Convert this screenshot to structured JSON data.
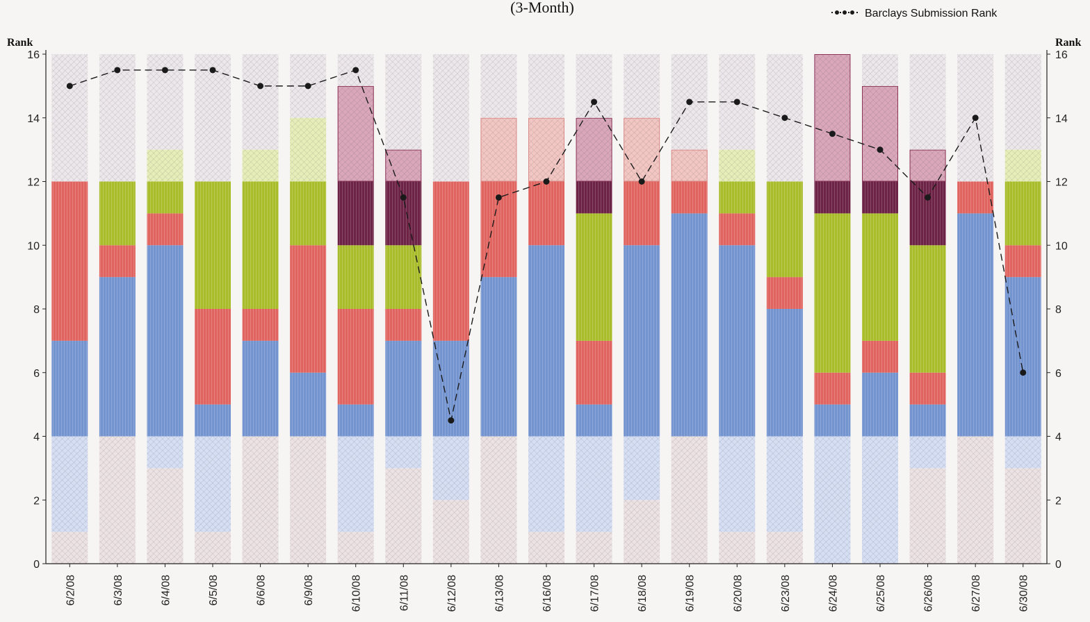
{
  "chart_data": {
    "type": "bar",
    "title": "(3-Month)",
    "ylabel": "Rank",
    "ylabel_right": "Rank",
    "ylim": [
      0,
      16
    ],
    "yticks": [
      0,
      2,
      4,
      6,
      8,
      10,
      12,
      14,
      16
    ],
    "grid": false,
    "legend_position": "top-right",
    "categories": [
      "6/2/08",
      "6/3/08",
      "6/4/08",
      "6/5/08",
      "6/6/08",
      "6/9/08",
      "6/10/08",
      "6/11/08",
      "6/12/08",
      "6/13/08",
      "6/16/08",
      "6/17/08",
      "6/18/08",
      "6/19/08",
      "6/20/08",
      "6/23/08",
      "6/24/08",
      "6/25/08",
      "6/26/08",
      "6/27/08",
      "6/30/08"
    ],
    "stacked_segments": [
      [
        [
          0,
          1,
          "lightpink"
        ],
        [
          1,
          4,
          "lightblue"
        ],
        [
          4,
          7,
          "blue"
        ],
        [
          7,
          12,
          "red"
        ],
        [
          12,
          16,
          "lightgray"
        ]
      ],
      [
        [
          0,
          4,
          "lightpink"
        ],
        [
          4,
          9,
          "blue"
        ],
        [
          9,
          10,
          "red"
        ],
        [
          10,
          12,
          "green"
        ],
        [
          12,
          16,
          "lightgray"
        ]
      ],
      [
        [
          0,
          3,
          "lightpink"
        ],
        [
          3,
          4,
          "lightblue"
        ],
        [
          4,
          10,
          "blue"
        ],
        [
          10,
          11,
          "red"
        ],
        [
          11,
          12,
          "green"
        ],
        [
          12,
          13,
          "lightgreen"
        ],
        [
          13,
          16,
          "lightgray"
        ]
      ],
      [
        [
          0,
          1,
          "lightpink"
        ],
        [
          1,
          4,
          "lightblue"
        ],
        [
          4,
          5,
          "blue"
        ],
        [
          5,
          8,
          "red"
        ],
        [
          8,
          12,
          "green"
        ],
        [
          12,
          16,
          "lightgray"
        ]
      ],
      [
        [
          0,
          4,
          "lightpink"
        ],
        [
          4,
          7,
          "blue"
        ],
        [
          7,
          8,
          "red"
        ],
        [
          8,
          12,
          "green"
        ],
        [
          12,
          13,
          "lightgreen"
        ],
        [
          13,
          16,
          "lightgray"
        ]
      ],
      [
        [
          0,
          4,
          "lightpink"
        ],
        [
          4,
          6,
          "blue"
        ],
        [
          6,
          10,
          "red"
        ],
        [
          10,
          12,
          "green"
        ],
        [
          12,
          14,
          "lightgreen"
        ],
        [
          14,
          16,
          "lightgray"
        ]
      ],
      [
        [
          0,
          1,
          "lightpink"
        ],
        [
          1,
          4,
          "lightblue"
        ],
        [
          4,
          5,
          "blue"
        ],
        [
          5,
          8,
          "red"
        ],
        [
          8,
          10,
          "green"
        ],
        [
          10,
          12,
          "darkpurple"
        ],
        [
          12,
          15,
          "lightpurple"
        ],
        [
          15,
          16,
          "lightgray"
        ]
      ],
      [
        [
          0,
          3,
          "lightpink"
        ],
        [
          3,
          4,
          "lightblue"
        ],
        [
          4,
          7,
          "blue"
        ],
        [
          7,
          8,
          "red"
        ],
        [
          8,
          10,
          "green"
        ],
        [
          10,
          12,
          "darkpurple"
        ],
        [
          12,
          13,
          "lightpurple"
        ],
        [
          13,
          16,
          "lightgray"
        ]
      ],
      [
        [
          0,
          2,
          "lightpink"
        ],
        [
          2,
          4,
          "lightblue"
        ],
        [
          4,
          7,
          "blue"
        ],
        [
          7,
          12,
          "red"
        ],
        [
          12,
          16,
          "lightgray"
        ]
      ],
      [
        [
          0,
          4,
          "lightpink"
        ],
        [
          4,
          9,
          "blue"
        ],
        [
          9,
          12,
          "red"
        ],
        [
          12,
          14,
          "salmon"
        ],
        [
          14,
          16,
          "lightgray"
        ]
      ],
      [
        [
          0,
          1,
          "lightpink"
        ],
        [
          1,
          4,
          "lightblue"
        ],
        [
          4,
          10,
          "blue"
        ],
        [
          10,
          12,
          "red"
        ],
        [
          12,
          14,
          "salmon"
        ],
        [
          14,
          16,
          "lightgray"
        ]
      ],
      [
        [
          0,
          1,
          "lightpink"
        ],
        [
          1,
          4,
          "lightblue"
        ],
        [
          4,
          5,
          "blue"
        ],
        [
          5,
          7,
          "red"
        ],
        [
          7,
          11,
          "green"
        ],
        [
          11,
          12,
          "darkpurple"
        ],
        [
          12,
          14,
          "lightpurple"
        ],
        [
          14,
          16,
          "lightgray"
        ]
      ],
      [
        [
          0,
          2,
          "lightpink"
        ],
        [
          2,
          4,
          "lightblue"
        ],
        [
          4,
          10,
          "blue"
        ],
        [
          10,
          12,
          "red"
        ],
        [
          12,
          14,
          "salmon"
        ],
        [
          14,
          16,
          "lightgray"
        ]
      ],
      [
        [
          0,
          4,
          "lightpink"
        ],
        [
          4,
          11,
          "blue"
        ],
        [
          11,
          12,
          "red"
        ],
        [
          12,
          13,
          "salmon"
        ],
        [
          13,
          16,
          "lightgray"
        ]
      ],
      [
        [
          0,
          1,
          "lightpink"
        ],
        [
          1,
          4,
          "lightblue"
        ],
        [
          4,
          10,
          "blue"
        ],
        [
          10,
          11,
          "red"
        ],
        [
          11,
          12,
          "green"
        ],
        [
          12,
          13,
          "lightgreen"
        ],
        [
          13,
          16,
          "lightgray"
        ]
      ],
      [
        [
          0,
          1,
          "lightpink"
        ],
        [
          1,
          4,
          "lightblue"
        ],
        [
          4,
          8,
          "blue"
        ],
        [
          8,
          9,
          "red"
        ],
        [
          9,
          12,
          "green"
        ],
        [
          12,
          16,
          "lightgray"
        ]
      ],
      [
        [
          0,
          4,
          "lightblue"
        ],
        [
          4,
          5,
          "blue"
        ],
        [
          5,
          6,
          "red"
        ],
        [
          6,
          11,
          "green"
        ],
        [
          11,
          12,
          "darkpurple"
        ],
        [
          12,
          16,
          "lightpurple"
        ]
      ],
      [
        [
          0,
          4,
          "lightblue"
        ],
        [
          4,
          6,
          "blue"
        ],
        [
          6,
          7,
          "red"
        ],
        [
          7,
          11,
          "green"
        ],
        [
          11,
          12,
          "darkpurple"
        ],
        [
          12,
          15,
          "lightpurple"
        ],
        [
          15,
          16,
          "lightgray"
        ]
      ],
      [
        [
          0,
          3,
          "lightpink"
        ],
        [
          3,
          4,
          "lightblue"
        ],
        [
          4,
          5,
          "blue"
        ],
        [
          5,
          6,
          "red"
        ],
        [
          6,
          10,
          "green"
        ],
        [
          10,
          12,
          "darkpurple"
        ],
        [
          12,
          13,
          "lightpurple"
        ],
        [
          13,
          16,
          "lightgray"
        ]
      ],
      [
        [
          0,
          4,
          "lightpink"
        ],
        [
          4,
          11,
          "blue"
        ],
        [
          11,
          12,
          "red"
        ],
        [
          12,
          16,
          "lightgray"
        ]
      ],
      [
        [
          0,
          3,
          "lightpink"
        ],
        [
          3,
          4,
          "lightblue"
        ],
        [
          4,
          9,
          "blue"
        ],
        [
          9,
          10,
          "red"
        ],
        [
          10,
          12,
          "green"
        ],
        [
          12,
          13,
          "lightgreen"
        ],
        [
          13,
          16,
          "lightgray"
        ]
      ]
    ],
    "series": [
      {
        "name": "Barclays Submission Rank",
        "type": "line",
        "values": [
          15,
          15.5,
          15.5,
          15.5,
          15,
          15,
          15.5,
          11.5,
          4.5,
          11.5,
          12,
          14.5,
          12,
          14.5,
          14.5,
          14,
          13.5,
          13,
          11.5,
          14,
          6
        ]
      }
    ],
    "colors": {
      "blue": "#7394cf",
      "red": "#e06560",
      "green": "#a9bd2c",
      "darkpurple": "#6c2346",
      "lightblue": "#d5def3",
      "lightpink": "#ece2e4",
      "lightgray": "#ece7ea",
      "lightgreen": "#e7edb9",
      "lightpurple": "#d9a7b9",
      "salmon": "#f2c6c2",
      "line": "#1a1a1a"
    }
  }
}
